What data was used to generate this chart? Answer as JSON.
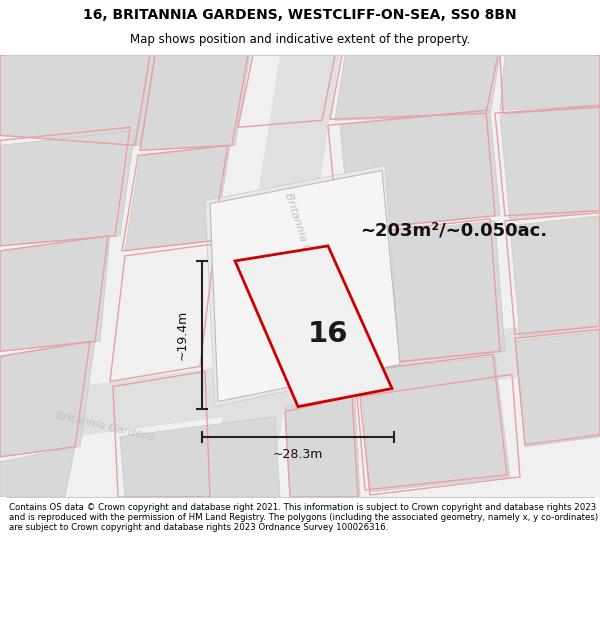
{
  "title_line1": "16, BRITANNIA GARDENS, WESTCLIFF-ON-SEA, SS0 8BN",
  "title_line2": "Map shows position and indicative extent of the property.",
  "footer_text": "Contains OS data © Crown copyright and database right 2021. This information is subject to Crown copyright and database rights 2023 and is reproduced with the permission of HM Land Registry. The polygons (including the associated geometry, namely x, y co-ordinates) are subject to Crown copyright and database rights 2023 Ordnance Survey 100026316.",
  "area_label": "~203m²/~0.050ac.",
  "number_label": "16",
  "width_label": "~28.3m",
  "height_label": "~19.4m",
  "bg_color": "#f0f0f0",
  "red_line_color": "#cc0000",
  "pink_line_color": "#e8a0a0",
  "dim_line_color": "#222222",
  "street_label_color": "#c0c0c0"
}
